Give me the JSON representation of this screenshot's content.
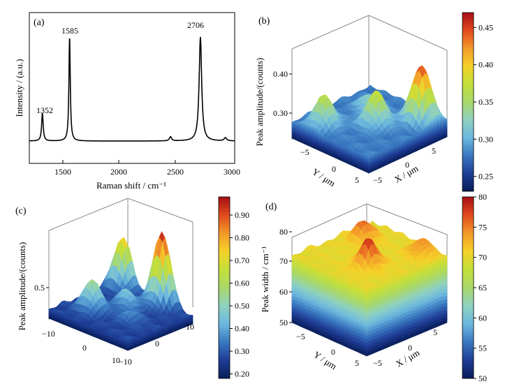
{
  "colormap": [
    "#081d58",
    "#1f3d96",
    "#3a78c0",
    "#6cb8df",
    "#8fd1c0",
    "#a8d86a",
    "#c4df3a",
    "#f5d129",
    "#f3992a",
    "#e04a1e",
    "#a50f15"
  ],
  "panels": [
    {
      "id": "a",
      "label": "(a)",
      "chart_data": {
        "type": "line",
        "xlabel": "Raman shift / cm⁻¹",
        "ylabel": "Intensity / (a.u.)",
        "xlim": [
          1240,
          3000
        ],
        "xticks": [
          "1500",
          "2000",
          "2500",
          "3000"
        ],
        "xtick_values": [
          1500,
          2000,
          2500,
          3000
        ],
        "peak_labels": [
          "1352",
          "1585",
          "2706"
        ],
        "peaks": [
          {
            "position": 1352,
            "height": 0.27,
            "width": 16
          },
          {
            "position": 1585,
            "height": 1.0,
            "width": 14
          },
          {
            "position": 2450,
            "height": 0.04,
            "width": 22
          },
          {
            "position": 2706,
            "height": 1.0,
            "width": 26
          },
          {
            "position": 2920,
            "height": 0.03,
            "width": 25
          }
        ],
        "baseline": 0.02
      }
    },
    {
      "id": "b",
      "label": "(b)",
      "chart_data": {
        "type": "surface",
        "zlabel": "Peak amplitude/(counts)",
        "ylabel": "Y / μm",
        "xlabel": "X / μm",
        "zticks": [
          "0.30",
          "0.40"
        ],
        "xticks": [
          "−5",
          "0",
          "5"
        ],
        "yticks": [
          "−5",
          "0",
          "5"
        ],
        "zlim": [
          0.23,
          0.47
        ],
        "colorbar_ticks": [
          "0.25",
          "0.30",
          "0.35",
          "0.40",
          "0.45"
        ],
        "colorbar_values": [
          0.25,
          0.3,
          0.35,
          0.4,
          0.45
        ],
        "peaks": [
          {
            "x": -4,
            "y": 3,
            "amp": 0.09
          },
          {
            "x": 0,
            "y": -1,
            "amp": 0.1
          },
          {
            "x": 4,
            "y": -4,
            "amp": 0.18
          },
          {
            "x": 2,
            "y": 2,
            "amp": 0.05
          }
        ],
        "base": 0.28
      }
    },
    {
      "id": "c",
      "label": "(c)",
      "chart_data": {
        "type": "surface",
        "zlabel": "Peak amplitude/(counts)",
        "zticks": [
          "0.5"
        ],
        "xticks": [
          "−10",
          "0",
          "10"
        ],
        "yticks": [
          "−10",
          "0",
          "10"
        ],
        "zlim": [
          0.18,
          0.98
        ],
        "colorbar_ticks": [
          "0.20",
          "0.30",
          "0.40",
          "0.50",
          "0.60",
          "0.70",
          "0.80",
          "0.90"
        ],
        "colorbar_values": [
          0.2,
          0.3,
          0.4,
          0.5,
          0.6,
          0.7,
          0.8,
          0.9
        ],
        "peaks": [
          {
            "x": 9,
            "y": -3,
            "amp": 0.7
          },
          {
            "x": 9,
            "y": 7,
            "amp": 0.5
          },
          {
            "x": -4,
            "y": 4,
            "amp": 0.3
          },
          {
            "x": 2,
            "y": 0,
            "amp": 0.2
          },
          {
            "x": -2,
            "y": -4,
            "amp": 0.1
          }
        ],
        "base": 0.27
      }
    },
    {
      "id": "d",
      "label": "(d)",
      "chart_data": {
        "type": "surface",
        "zlabel": "Peak width / cm⁻¹",
        "ylabel": "Y / μm",
        "xlabel": "X / μm",
        "zticks": [
          "50",
          "60",
          "70",
          "80"
        ],
        "xticks": [
          "−5",
          "0",
          "5"
        ],
        "yticks": [
          "−5",
          "0",
          "5"
        ],
        "zlim": [
          50,
          80
        ],
        "colorbar_ticks": [
          "50",
          "55",
          "60",
          "65",
          "70",
          "75",
          "80"
        ],
        "colorbar_values": [
          50,
          55,
          60,
          65,
          70,
          75,
          80
        ],
        "peaks": [
          {
            "x": -2,
            "y": -2,
            "amp": 8
          },
          {
            "x": 2,
            "y": 3,
            "amp": 6
          },
          {
            "x": 4,
            "y": -4,
            "amp": 5
          }
        ],
        "base": 70
      }
    }
  ]
}
